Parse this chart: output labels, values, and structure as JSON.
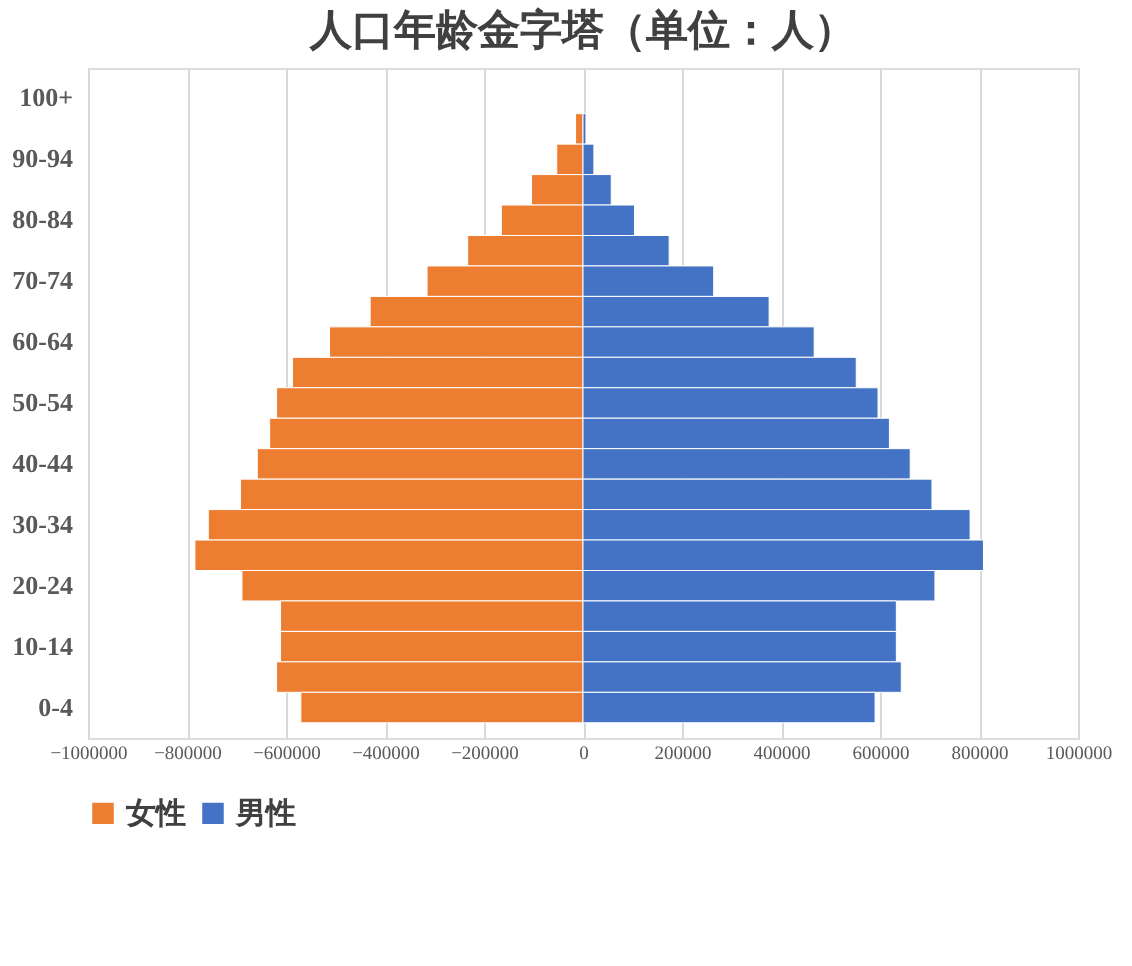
{
  "chart_data": {
    "type": "bar",
    "orientation": "horizontal",
    "stacked": true,
    "title": "人口年龄金字塔（单位：人）",
    "categories": [
      "100+",
      null,
      "90-94",
      null,
      "80-84",
      null,
      "70-74",
      null,
      "60-64",
      null,
      "50-54",
      null,
      "40-44",
      null,
      "30-34",
      null,
      "20-24",
      null,
      "10-14",
      null,
      "0-4"
    ],
    "series": [
      {
        "name": "女性",
        "color": "#ed7d31",
        "values": [
          null,
          -15000,
          -53000,
          -104000,
          -165000,
          -233000,
          -315000,
          -430000,
          -512000,
          -587000,
          -619000,
          -633000,
          -658000,
          -692000,
          -757000,
          -784000,
          -689000,
          -611000,
          -611000,
          -619000,
          -570000
        ]
      },
      {
        "name": "男性",
        "color": "#4472c4",
        "values": [
          null,
          6000,
          22000,
          57000,
          104000,
          174000,
          264000,
          376000,
          467000,
          552000,
          596000,
          619000,
          661000,
          705000,
          782000,
          809000,
          711000,
          633000,
          633000,
          643000,
          590000
        ]
      }
    ],
    "xlim": [
      -1000000,
      1000000
    ],
    "xticks": [
      -1000000,
      -800000,
      -600000,
      -400000,
      -200000,
      0,
      200000,
      400000,
      600000,
      800000,
      1000000
    ],
    "grid": "x",
    "legend": "bottom"
  }
}
